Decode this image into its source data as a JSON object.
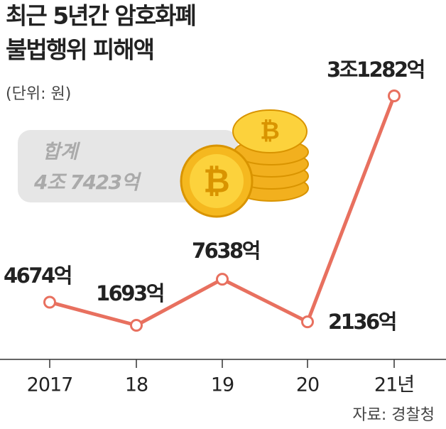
{
  "chart_data": {
    "type": "line",
    "title": [
      "최근 5년간 암호화폐",
      "불법행위 피해액"
    ],
    "subtitle": "(단위: 원)",
    "annotation": [
      "합계",
      "4조 7423억"
    ],
    "source": "자료: 경찰청",
    "categories": [
      "2017",
      "18",
      "19",
      "20",
      "21년"
    ],
    "values": [
      4674,
      1693,
      7638,
      2136,
      31282
    ],
    "value_labels": [
      "4674억",
      "1693억",
      "7638억",
      "2136억",
      "3조1282억"
    ],
    "color": "#e8705f"
  }
}
